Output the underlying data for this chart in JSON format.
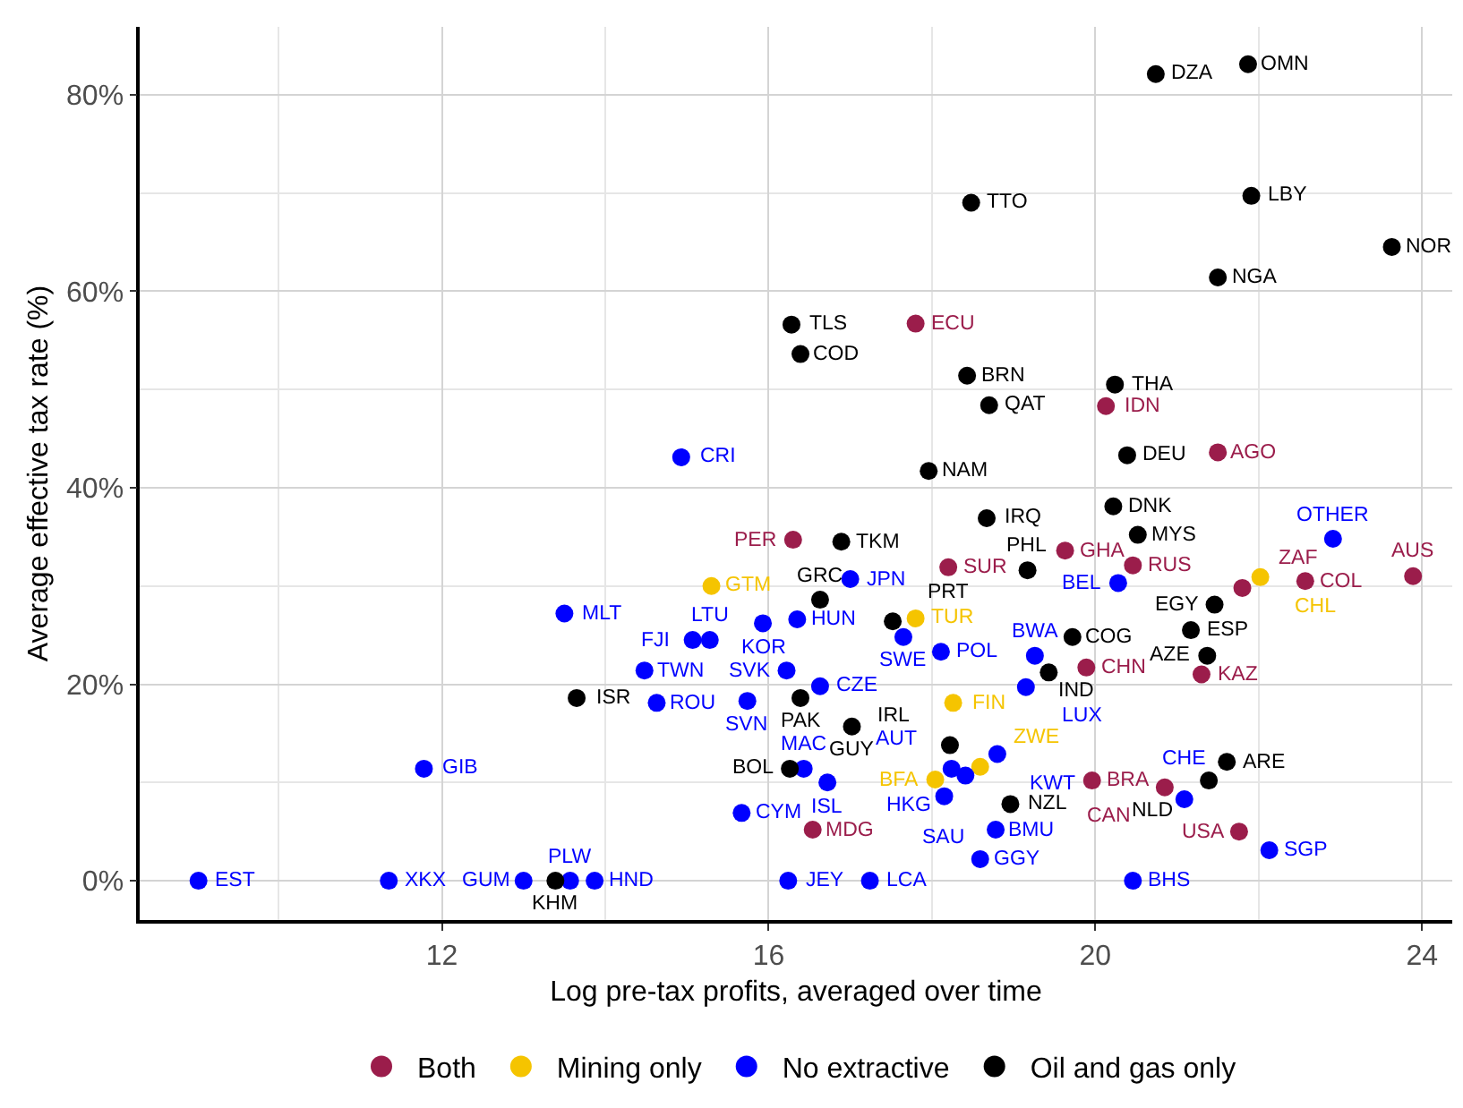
{
  "chart_data": {
    "type": "scatter",
    "xlabel": "Log pre-tax profits, averaged over time",
    "ylabel": "Average effective tax rate (%)",
    "xlim": [
      8.3,
      24.37
    ],
    "ylim": [
      -4,
      86.9
    ],
    "xticks": [
      12,
      16,
      20,
      24
    ],
    "yticks": [
      {
        "value": 0,
        "label": "0%"
      },
      {
        "value": 20,
        "label": "20%"
      },
      {
        "value": 40,
        "label": "40%"
      },
      {
        "value": 60,
        "label": "60%"
      },
      {
        "value": 80,
        "label": "80%"
      }
    ],
    "grid": true,
    "legend": "bottom",
    "marker": "circle",
    "series": [
      {
        "name": "Both",
        "color": "#9b1d4b",
        "x": [
          17.8,
          20.13,
          21.5,
          16.3,
          18.2,
          19.63,
          20.46,
          21.8,
          22.57,
          23.89,
          19.89,
          21.3,
          16.54,
          19.96,
          20.85,
          21.76
        ],
        "values": [
          56.7,
          48.3,
          43.6,
          34.7,
          31.9,
          33.6,
          32.1,
          29.8,
          30.5,
          31.0,
          21.7,
          21.0,
          5.2,
          10.2,
          9.5,
          5.0
        ]
      },
      {
        "name": "Mining only",
        "color": "#f5c400",
        "x": [
          15.3,
          17.8,
          22.02,
          18.26,
          18.59,
          18.04
        ],
        "values": [
          30.0,
          26.7,
          30.9,
          18.1,
          11.6,
          10.3
        ]
      },
      {
        "name": "No extractive",
        "color": "#0000ff",
        "x": [
          14.93,
          22.91,
          17.0,
          20.28,
          13.5,
          15.07,
          15.28,
          15.93,
          16.35,
          17.65,
          18.11,
          19.26,
          16.22,
          16.63,
          14.48,
          14.63,
          15.74,
          19.15,
          11.78,
          15.67,
          16.43,
          16.72,
          18.24,
          18.41,
          18.8,
          18.15,
          18.78,
          18.59,
          16.24,
          17.24,
          20.46,
          21.09,
          22.13,
          9.02,
          11.35,
          13.0,
          13.57,
          13.87
        ],
        "values": [
          43.1,
          34.8,
          30.7,
          30.3,
          27.2,
          24.5,
          24.5,
          26.2,
          26.6,
          24.8,
          23.3,
          22.9,
          21.4,
          19.8,
          21.4,
          18.1,
          18.3,
          19.7,
          11.4,
          6.9,
          11.4,
          10.0,
          11.4,
          10.7,
          12.9,
          8.6,
          5.2,
          2.2,
          0,
          0,
          0,
          8.3,
          3.1,
          0,
          0,
          0,
          0,
          0
        ]
      },
      {
        "name": "Oil and gas only",
        "color": "#000000",
        "x": [
          20.74,
          21.87,
          18.48,
          21.91,
          23.63,
          21.5,
          16.28,
          16.39,
          18.43,
          18.7,
          20.24,
          17.96,
          20.39,
          18.67,
          20.22,
          20.52,
          16.89,
          19.17,
          16.63,
          21.46,
          17.52,
          19.72,
          21.17,
          21.37,
          19.43,
          13.65,
          16.39,
          17.02,
          18.22,
          16.26,
          21.61,
          21.39,
          18.96,
          13.39
        ],
        "values": [
          82.1,
          83.1,
          69.0,
          69.7,
          64.5,
          61.4,
          56.6,
          53.6,
          51.4,
          48.4,
          50.5,
          41.7,
          43.3,
          36.9,
          38.1,
          35.2,
          34.5,
          31.6,
          28.6,
          28.1,
          26.4,
          24.8,
          25.5,
          22.9,
          21.2,
          18.6,
          18.6,
          15.7,
          13.8,
          11.4,
          12.1,
          10.2,
          7.8,
          0
        ]
      }
    ],
    "annotations": [
      {
        "text": "ECU",
        "x": 17.8,
        "y": 56.7
      },
      {
        "text": "IDN",
        "x": 20.13,
        "y": 48.3
      },
      {
        "text": "AGO",
        "x": 21.5,
        "y": 43.6
      },
      {
        "text": "PER",
        "x": 16.3,
        "y": 34.7
      },
      {
        "text": "SUR",
        "x": 18.2,
        "y": 31.9
      },
      {
        "text": "GHA",
        "x": 19.63,
        "y": 33.6
      },
      {
        "text": "RUS",
        "x": 20.46,
        "y": 32.1
      },
      {
        "text": "ZAF",
        "x": 21.8,
        "y": 29.8
      },
      {
        "text": "COL",
        "x": 22.57,
        "y": 30.5
      },
      {
        "text": "AUS",
        "x": 23.89,
        "y": 31.0
      },
      {
        "text": "CHN",
        "x": 19.89,
        "y": 21.7
      },
      {
        "text": "KAZ",
        "x": 21.3,
        "y": 21.0
      },
      {
        "text": "MDG",
        "x": 16.54,
        "y": 5.2
      },
      {
        "text": "BRA",
        "x": 19.96,
        "y": 10.2
      },
      {
        "text": "CAN",
        "x": 20.85,
        "y": 9.5
      },
      {
        "text": "USA",
        "x": 21.76,
        "y": 5.0
      },
      {
        "text": "GTM",
        "x": 15.3,
        "y": 30.0
      },
      {
        "text": "TUR",
        "x": 17.8,
        "y": 26.7
      },
      {
        "text": "CHL",
        "x": 22.02,
        "y": 30.9
      },
      {
        "text": "FIN",
        "x": 18.26,
        "y": 18.1
      },
      {
        "text": "ZWE",
        "x": 18.59,
        "y": 11.6
      },
      {
        "text": "BFA",
        "x": 18.04,
        "y": 10.3
      },
      {
        "text": "CRI",
        "x": 14.93,
        "y": 43.1
      },
      {
        "text": "OTHER",
        "x": 22.91,
        "y": 34.8
      },
      {
        "text": "JPN",
        "x": 17.0,
        "y": 30.7
      },
      {
        "text": "BEL",
        "x": 20.28,
        "y": 30.3
      },
      {
        "text": "MLT",
        "x": 13.5,
        "y": 27.2
      },
      {
        "text": "FJI",
        "x": 15.07,
        "y": 24.5
      },
      {
        "text": "LTU",
        "x": 15.28,
        "y": 24.5
      },
      {
        "text": "KOR",
        "x": 15.93,
        "y": 26.2
      },
      {
        "text": "HUN",
        "x": 16.35,
        "y": 26.6
      },
      {
        "text": "SWE",
        "x": 17.65,
        "y": 24.8
      },
      {
        "text": "POL",
        "x": 18.11,
        "y": 23.3
      },
      {
        "text": "BWA",
        "x": 19.26,
        "y": 22.9
      },
      {
        "text": "SVK",
        "x": 16.22,
        "y": 21.4
      },
      {
        "text": "CZE",
        "x": 16.63,
        "y": 19.8
      },
      {
        "text": "TWN",
        "x": 14.48,
        "y": 21.4
      },
      {
        "text": "ROU",
        "x": 14.63,
        "y": 18.1
      },
      {
        "text": "SVN",
        "x": 15.74,
        "y": 18.3
      },
      {
        "text": "LUX",
        "x": 19.15,
        "y": 19.7
      },
      {
        "text": "GIB",
        "x": 11.78,
        "y": 11.4
      },
      {
        "text": "CYM",
        "x": 15.67,
        "y": 6.9
      },
      {
        "text": "MAC",
        "x": 16.43,
        "y": 11.4
      },
      {
        "text": "ISL",
        "x": 16.72,
        "y": 10.0
      },
      {
        "text": "AUT",
        "x": 18.24,
        "y": 11.4
      },
      {
        "text": "HKG",
        "x": 18.41,
        "y": 10.7
      },
      {
        "text": "KWT",
        "x": 18.8,
        "y": 12.9
      },
      {
        "text": "SAU",
        "x": 18.15,
        "y": 8.6
      },
      {
        "text": "BMU",
        "x": 18.78,
        "y": 5.2
      },
      {
        "text": "GGY",
        "x": 18.59,
        "y": 2.2
      },
      {
        "text": "JEY",
        "x": 16.24,
        "y": 0
      },
      {
        "text": "LCA",
        "x": 17.24,
        "y": 0
      },
      {
        "text": "BHS",
        "x": 20.46,
        "y": 0
      },
      {
        "text": "CHE",
        "x": 21.09,
        "y": 8.3
      },
      {
        "text": "SGP",
        "x": 22.13,
        "y": 3.1
      },
      {
        "text": "EST",
        "x": 9.02,
        "y": 0
      },
      {
        "text": "XKX",
        "x": 11.35,
        "y": 0
      },
      {
        "text": "GUM",
        "x": 13.0,
        "y": 0
      },
      {
        "text": "PLW",
        "x": 13.57,
        "y": 0
      },
      {
        "text": "HND",
        "x": 13.87,
        "y": 0
      },
      {
        "text": "DZA",
        "x": 20.74,
        "y": 82.1
      },
      {
        "text": "OMN",
        "x": 21.87,
        "y": 83.1
      },
      {
        "text": "TTO",
        "x": 18.48,
        "y": 69.0
      },
      {
        "text": "LBY",
        "x": 21.91,
        "y": 69.7
      },
      {
        "text": "NOR",
        "x": 23.63,
        "y": 64.5
      },
      {
        "text": "NGA",
        "x": 21.5,
        "y": 61.4
      },
      {
        "text": "TLS",
        "x": 16.28,
        "y": 56.6
      },
      {
        "text": "COD",
        "x": 16.39,
        "y": 53.6
      },
      {
        "text": "BRN",
        "x": 18.43,
        "y": 51.4
      },
      {
        "text": "QAT",
        "x": 18.7,
        "y": 48.4
      },
      {
        "text": "THA",
        "x": 20.24,
        "y": 50.5
      },
      {
        "text": "NAM",
        "x": 17.96,
        "y": 41.7
      },
      {
        "text": "DEU",
        "x": 20.39,
        "y": 43.3
      },
      {
        "text": "IRQ",
        "x": 18.67,
        "y": 36.9
      },
      {
        "text": "DNK",
        "x": 20.22,
        "y": 38.1
      },
      {
        "text": "MYS",
        "x": 20.52,
        "y": 35.2
      },
      {
        "text": "TKM",
        "x": 16.89,
        "y": 34.5
      },
      {
        "text": "PHL",
        "x": 19.17,
        "y": 31.6
      },
      {
        "text": "GRC",
        "x": 16.63,
        "y": 28.6
      },
      {
        "text": "EGY",
        "x": 21.46,
        "y": 28.1
      },
      {
        "text": "PRT",
        "x": 17.52,
        "y": 26.4
      },
      {
        "text": "COG",
        "x": 19.72,
        "y": 24.8
      },
      {
        "text": "ESP",
        "x": 21.17,
        "y": 25.5
      },
      {
        "text": "AZE",
        "x": 21.37,
        "y": 22.9
      },
      {
        "text": "IND",
        "x": 19.43,
        "y": 21.2
      },
      {
        "text": "ISR",
        "x": 13.65,
        "y": 18.6
      },
      {
        "text": "PAK",
        "x": 16.39,
        "y": 18.6
      },
      {
        "text": "GUY",
        "x": 17.02,
        "y": 15.7
      },
      {
        "text": "IRL",
        "x": 18.22,
        "y": 13.8
      },
      {
        "text": "BOL",
        "x": 16.26,
        "y": 11.4
      },
      {
        "text": "ARE",
        "x": 21.61,
        "y": 12.1
      },
      {
        "text": "NLD",
        "x": 21.39,
        "y": 10.2
      },
      {
        "text": "NZL",
        "x": 18.96,
        "y": 7.8
      },
      {
        "text": "KHM",
        "x": 13.39,
        "y": 0
      }
    ]
  }
}
